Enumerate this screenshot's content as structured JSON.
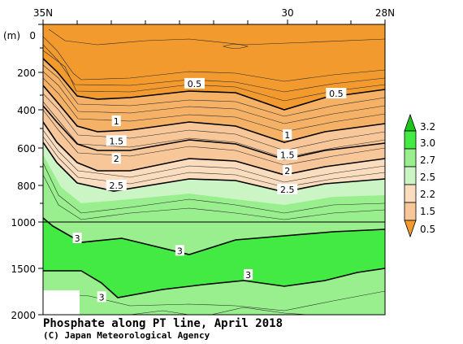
{
  "chart_data": {
    "type": "contour",
    "title": "Phosphate along PT line, April 2018",
    "credit": "(C) Japan Meteorological Agency",
    "x_ticks": [
      "35N",
      "30",
      "28N"
    ],
    "y_unit": "(m)",
    "y_ticks": [
      "0",
      "200",
      "400",
      "600",
      "800",
      "1000",
      "1500",
      "2000"
    ],
    "y_axis_break": "linear 0–1000 m, compressed 1000–2000 m",
    "legend_levels": [
      "3.2",
      "3.0",
      "2.7",
      "2.5",
      "2.2",
      "1.5",
      "0.5"
    ],
    "colors": {
      "orange_deep": "#f29a2e",
      "orange_mid": "#f5b165",
      "orange_light": "#f7c79a",
      "peach": "#fadcbf",
      "green_pale": "#ccf5c6",
      "green_light": "#99ef8e",
      "green_bright": "#44ea44",
      "green_dark": "#1ec41e"
    },
    "contour_labels": [
      {
        "text": "0.5",
        "lat": 31.9,
        "depth": 300
      },
      {
        "text": "0.5",
        "lat": 29.0,
        "depth": 350
      },
      {
        "text": "1",
        "lat": 33.5,
        "depth": 490
      },
      {
        "text": "1",
        "lat": 30.0,
        "depth": 560
      },
      {
        "text": "1.5",
        "lat": 33.5,
        "depth": 590
      },
      {
        "text": "1.5",
        "lat": 30.0,
        "depth": 660
      },
      {
        "text": "2",
        "lat": 33.5,
        "depth": 680
      },
      {
        "text": "2",
        "lat": 30.0,
        "depth": 740
      },
      {
        "text": "2.5",
        "lat": 33.5,
        "depth": 815
      },
      {
        "text": "2.5",
        "lat": 30.0,
        "depth": 835
      },
      {
        "text": "3",
        "lat": 34.3,
        "depth": 1175
      },
      {
        "text": "3",
        "lat": 32.2,
        "depth": 1310
      },
      {
        "text": "3",
        "lat": 33.8,
        "depth": 1810
      },
      {
        "text": "3",
        "lat": 30.8,
        "depth": 1570
      }
    ]
  }
}
